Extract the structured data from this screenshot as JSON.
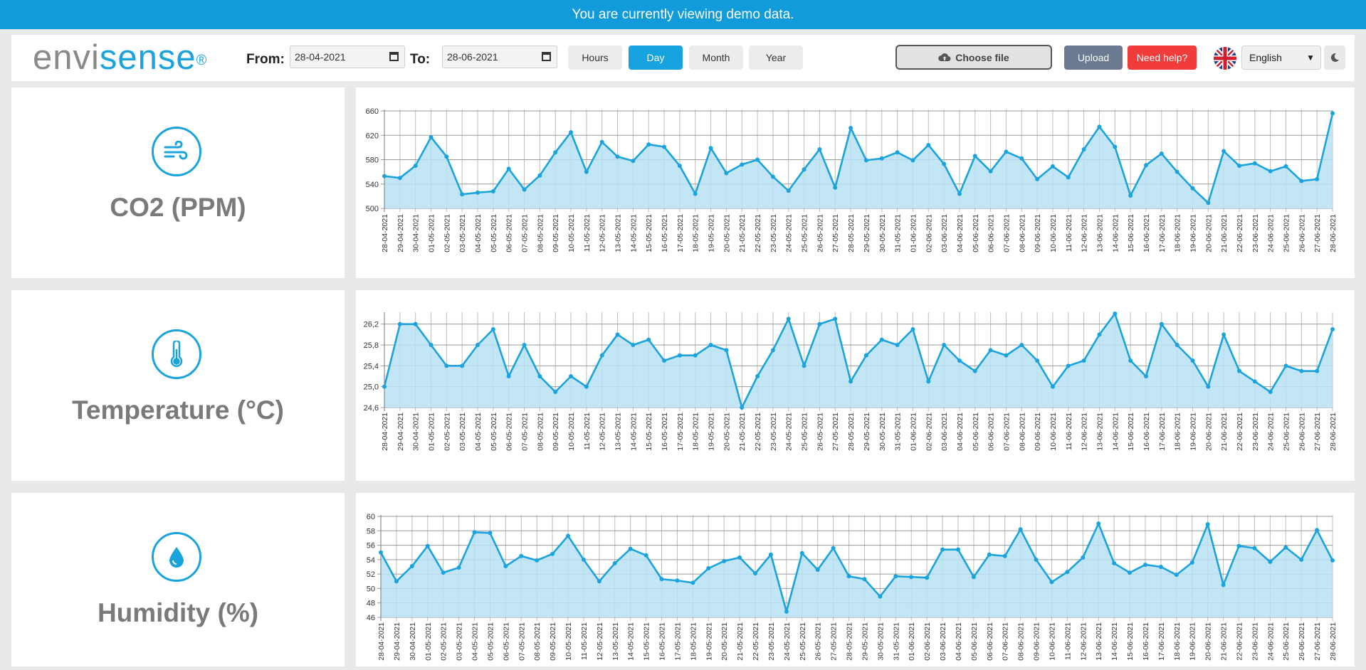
{
  "banner": {
    "text": "You are currently viewing demo data."
  },
  "header": {
    "logo_env": "envi",
    "logo_sense": "sense",
    "logo_reg": "®",
    "from_label": "From:",
    "from_value": "28-04-2021",
    "to_label": "To:",
    "to_value": "28-06-2021",
    "range_buttons": [
      "Hours",
      "Day",
      "Month",
      "Year"
    ],
    "active_range": "Day",
    "choose_file_label": "Choose file",
    "upload_label": "Upload",
    "help_label": "Need help?",
    "language": "English",
    "colors": {
      "accent": "#1aa3dd",
      "upload": "#6c7a91",
      "help": "#f23b3b",
      "banner": "#129bdb"
    }
  },
  "panels": [
    {
      "title": "CO2 (PPM)",
      "icon": "wind-icon"
    },
    {
      "title": "Temperature (°C)",
      "icon": "thermometer-icon"
    },
    {
      "title": "Humidity (%)",
      "icon": "water-drop-icon"
    }
  ],
  "chart_data": [
    {
      "type": "area",
      "x": [
        "28-04-2021",
        "29-04-2021",
        "30-04-2021",
        "01-05-2021",
        "02-05-2021",
        "03-05-2021",
        "04-05-2021",
        "05-05-2021",
        "06-05-2021",
        "07-05-2021",
        "08-05-2021",
        "09-05-2021",
        "10-05-2021",
        "11-05-2021",
        "12-05-2021",
        "13-05-2021",
        "14-05-2021",
        "15-05-2021",
        "16-05-2021",
        "17-05-2021",
        "18-05-2021",
        "19-05-2021",
        "20-05-2021",
        "21-05-2021",
        "22-05-2021",
        "23-05-2021",
        "24-05-2021",
        "25-05-2021",
        "26-05-2021",
        "27-05-2021",
        "28-05-2021",
        "29-05-2021",
        "30-05-2021",
        "31-05-2021",
        "01-06-2021",
        "02-06-2021",
        "03-06-2021",
        "04-06-2021",
        "05-06-2021",
        "06-06-2021",
        "07-06-2021",
        "08-06-2021",
        "09-06-2021",
        "10-06-2021",
        "11-06-2021",
        "12-06-2021",
        "13-06-2021",
        "14-06-2021",
        "15-06-2021",
        "16-06-2021",
        "17-06-2021",
        "18-06-2021",
        "19-06-2021",
        "20-06-2021",
        "21-06-2021",
        "22-06-2021",
        "23-06-2021",
        "24-06-2021",
        "25-06-2021",
        "26-06-2021",
        "27-06-2021",
        "28-06-2021"
      ],
      "values": [
        553,
        550,
        570,
        617,
        585,
        523,
        526,
        528,
        565,
        531,
        554,
        592,
        625,
        560,
        609,
        585,
        578,
        605,
        601,
        570,
        524,
        599,
        558,
        572,
        580,
        552,
        529,
        564,
        597,
        534,
        632,
        579,
        582,
        592,
        579,
        604,
        573,
        524,
        586,
        561,
        593,
        582,
        548,
        569,
        551,
        597,
        634,
        601,
        521,
        571,
        590,
        560,
        533,
        509,
        594,
        570,
        574,
        561,
        569,
        545,
        548,
        656
      ],
      "yticks": [
        "500",
        "540",
        "580",
        "620",
        "660"
      ],
      "ylim": [
        500,
        660
      ],
      "color": "#1aa3dd",
      "fill": "#b8e2f5"
    },
    {
      "type": "area",
      "x": [
        "28-04-2021",
        "29-04-2021",
        "30-04-2021",
        "01-05-2021",
        "02-05-2021",
        "03-05-2021",
        "04-05-2021",
        "05-05-2021",
        "06-05-2021",
        "07-05-2021",
        "08-05-2021",
        "09-05-2021",
        "10-05-2021",
        "11-05-2021",
        "12-05-2021",
        "13-05-2021",
        "14-05-2021",
        "15-05-2021",
        "16-05-2021",
        "17-05-2021",
        "18-05-2021",
        "19-05-2021",
        "20-05-2021",
        "21-05-2021",
        "22-05-2021",
        "23-05-2021",
        "24-05-2021",
        "25-05-2021",
        "26-05-2021",
        "27-05-2021",
        "28-05-2021",
        "29-05-2021",
        "30-05-2021",
        "31-05-2021",
        "01-06-2021",
        "02-06-2021",
        "03-06-2021",
        "04-06-2021",
        "05-06-2021",
        "06-06-2021",
        "07-06-2021",
        "08-06-2021",
        "09-06-2021",
        "10-06-2021",
        "11-06-2021",
        "12-06-2021",
        "13-06-2021",
        "14-06-2021",
        "15-06-2021",
        "16-06-2021",
        "17-06-2021",
        "18-06-2021",
        "19-06-2021",
        "20-06-2021",
        "21-06-2021",
        "22-06-2021",
        "23-06-2021",
        "24-06-2021",
        "25-06-2021",
        "26-06-2021",
        "27-06-2021",
        "28-06-2021"
      ],
      "values": [
        25.0,
        26.2,
        26.2,
        25.8,
        25.4,
        25.4,
        25.8,
        26.1,
        25.2,
        25.8,
        25.2,
        24.9,
        25.2,
        25.0,
        25.6,
        26.0,
        25.8,
        25.9,
        25.5,
        25.6,
        25.6,
        25.8,
        25.7,
        24.6,
        25.2,
        25.7,
        26.3,
        25.4,
        26.2,
        26.3,
        25.1,
        25.6,
        25.9,
        25.8,
        26.1,
        25.1,
        25.8,
        25.5,
        25.3,
        25.7,
        25.6,
        25.8,
        25.5,
        25.0,
        25.4,
        25.5,
        26.0,
        26.4,
        25.5,
        25.2,
        26.2,
        25.8,
        25.5,
        25.0,
        26.0,
        25.3,
        25.1,
        24.9,
        25.4,
        25.3,
        25.3,
        26.1
      ],
      "yticks": [
        "24,6",
        "25,0",
        "25,4",
        "25,8",
        "26,2"
      ],
      "ylim": [
        24.6,
        26.4
      ],
      "color": "#1aa3dd",
      "fill": "#b8e2f5"
    },
    {
      "type": "area",
      "x": [
        "28-04-2021",
        "29-04-2021",
        "30-04-2021",
        "01-05-2021",
        "02-05-2021",
        "03-05-2021",
        "04-05-2021",
        "05-05-2021",
        "06-05-2021",
        "07-05-2021",
        "08-05-2021",
        "09-05-2021",
        "10-05-2021",
        "11-05-2021",
        "12-05-2021",
        "13-05-2021",
        "14-05-2021",
        "15-05-2021",
        "16-05-2021",
        "17-05-2021",
        "18-05-2021",
        "19-05-2021",
        "20-05-2021",
        "21-05-2021",
        "22-05-2021",
        "23-05-2021",
        "24-05-2021",
        "25-05-2021",
        "26-05-2021",
        "27-05-2021",
        "28-05-2021",
        "29-05-2021",
        "30-05-2021",
        "31-05-2021",
        "01-06-2021",
        "02-06-2021",
        "03-06-2021",
        "04-06-2021",
        "05-06-2021",
        "06-06-2021",
        "07-06-2021",
        "08-06-2021",
        "09-06-2021",
        "10-06-2021",
        "11-06-2021",
        "12-06-2021",
        "13-06-2021",
        "14-06-2021",
        "15-06-2021",
        "16-06-2021",
        "17-06-2021",
        "18-06-2021",
        "19-06-2021",
        "20-06-2021",
        "21-06-2021",
        "22-06-2021",
        "23-06-2021",
        "24-06-2021",
        "25-06-2021",
        "26-06-2021",
        "27-06-2021",
        "28-06-2021"
      ],
      "values": [
        55.0,
        51.0,
        53.1,
        55.9,
        52.2,
        52.9,
        57.8,
        57.7,
        53.1,
        54.5,
        53.9,
        54.8,
        57.3,
        54.0,
        51.0,
        53.5,
        55.5,
        54.6,
        51.3,
        51.1,
        50.8,
        52.8,
        53.8,
        54.3,
        52.1,
        54.7,
        46.8,
        54.9,
        52.6,
        55.6,
        51.7,
        51.3,
        48.9,
        51.7,
        51.6,
        51.5,
        55.4,
        55.4,
        51.6,
        54.7,
        54.5,
        58.2,
        54.0,
        50.9,
        52.3,
        54.3,
        59.0,
        53.5,
        52.2,
        53.3,
        53.0,
        51.9,
        53.6,
        58.9,
        50.5,
        55.9,
        55.6,
        53.7,
        55.7,
        54.0,
        58.1,
        53.9
      ],
      "yticks": [
        "46",
        "48",
        "50",
        "52",
        "54",
        "56",
        "58",
        "60"
      ],
      "ylim": [
        46,
        60
      ],
      "color": "#1aa3dd",
      "fill": "#b8e2f5"
    }
  ]
}
